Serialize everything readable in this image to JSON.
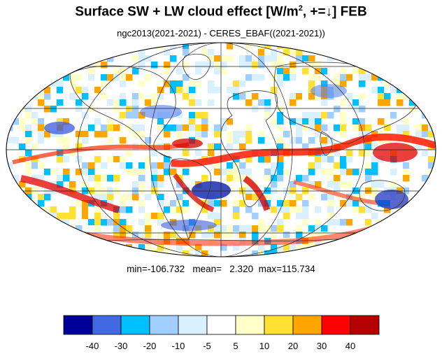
{
  "title_main": "Surface SW + LW cloud effect [W/m",
  "title_sup": "2",
  "title_rest": ", +=↓]  FEB",
  "subtitle": "ngc2013(2021-2021) - CERES_EBAF((2021-2021))",
  "stats": {
    "min_label": "min=",
    "min": "-106.732",
    "mean_label": "mean=",
    "mean": "2.320",
    "max_label": "max=",
    "max": "115.734"
  },
  "colorbar": {
    "colors": [
      "#000099",
      "#4169e1",
      "#00bfff",
      "#a0cfff",
      "#d8f0ff",
      "#ffffff",
      "#ffffc8",
      "#ffe033",
      "#ffa500",
      "#ff0000",
      "#b40000"
    ],
    "tick_labels": [
      "-40",
      "-30",
      "-20",
      "-10",
      "-5",
      "5",
      "10",
      "20",
      "30",
      "40"
    ]
  }
}
